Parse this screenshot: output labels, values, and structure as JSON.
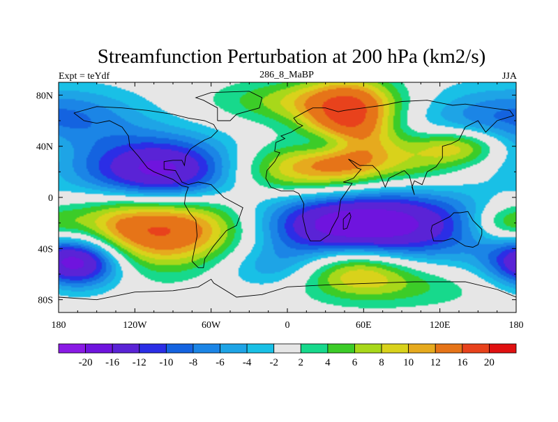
{
  "chart_data": {
    "type": "heatmap",
    "title": "Streamfunction Perturbation at 200 hPa (km2/s)",
    "left_string": "Expt = teYdf",
    "center_string": "286_8_MaBP",
    "right_string": "JJA",
    "x_ticks": [
      {
        "value": -180,
        "label": "180"
      },
      {
        "value": -120,
        "label": "120W"
      },
      {
        "value": -60,
        "label": "60W"
      },
      {
        "value": 0,
        "label": "0"
      },
      {
        "value": 60,
        "label": "60E"
      },
      {
        "value": 120,
        "label": "120E"
      },
      {
        "value": 180,
        "label": "180"
      }
    ],
    "y_ticks": [
      {
        "value": 80,
        "label": "80N"
      },
      {
        "value": 40,
        "label": "40N"
      },
      {
        "value": 0,
        "label": "0"
      },
      {
        "value": -40,
        "label": "40S"
      },
      {
        "value": -80,
        "label": "80S"
      }
    ],
    "xlim": [
      -180,
      180
    ],
    "ylim": [
      -90,
      90
    ],
    "colorbar_levels": [
      "-20",
      "-16",
      "-12",
      "-10",
      "-8",
      "-6",
      "-4",
      "-2",
      "2",
      "4",
      "6",
      "8",
      "10",
      "12",
      "16",
      "20"
    ],
    "colorbar_colors": [
      "#8a1ae5",
      "#6f14de",
      "#5a23d6",
      "#2b2ee6",
      "#1463e0",
      "#1b85e6",
      "#1ea4e6",
      "#19c0e6",
      "#e6e6e6",
      "#17d98c",
      "#3ccc28",
      "#a8d81a",
      "#d9d21b",
      "#e6aa1e",
      "#e67418",
      "#e8421c",
      "#e01010"
    ],
    "features": [
      {
        "lon": -100,
        "lat": 18,
        "value": -20,
        "rx": 45,
        "ry": 20
      },
      {
        "lon": 48,
        "lat": -22,
        "value": -22,
        "rx": 75,
        "ry": 22
      },
      {
        "lon": -165,
        "lat": -50,
        "value": -20,
        "rx": 25,
        "ry": 14
      },
      {
        "lon": 35,
        "lat": 42,
        "value": -8,
        "rx": 20,
        "ry": 8
      },
      {
        "lon": -5,
        "lat": -55,
        "value": -6,
        "rx": 35,
        "ry": 12
      },
      {
        "lon": 150,
        "lat": 60,
        "value": -6,
        "rx": 50,
        "ry": 20
      },
      {
        "lon": -160,
        "lat": 65,
        "value": -4,
        "rx": 40,
        "ry": 15
      },
      {
        "lon": -90,
        "lat": -22,
        "value": 22,
        "rx": 60,
        "ry": 22
      },
      {
        "lon": 10,
        "lat": 20,
        "value": 12,
        "rx": 40,
        "ry": 15
      },
      {
        "lon": 50,
        "lat": 55,
        "value": 16,
        "rx": 25,
        "ry": 25
      },
      {
        "lon": 20,
        "lat": 75,
        "value": 8,
        "rx": 50,
        "ry": 12
      },
      {
        "lon": 50,
        "lat": -55,
        "value": 14,
        "rx": 35,
        "ry": 14
      },
      {
        "lon": 135,
        "lat": 40,
        "value": 10,
        "rx": 25,
        "ry": 10
      },
      {
        "lon": 100,
        "lat": 25,
        "value": 6,
        "rx": 30,
        "ry": 15
      },
      {
        "lon": 170,
        "lat": -20,
        "value": 6,
        "rx": 18,
        "ry": 10
      },
      {
        "lon": 95,
        "lat": -70,
        "value": 4,
        "rx": 50,
        "ry": 12
      }
    ],
    "coastlines": [
      [
        [
          -168,
          66
        ],
        [
          -160,
          60
        ],
        [
          -150,
          58
        ],
        [
          -140,
          60
        ],
        [
          -130,
          55
        ],
        [
          -125,
          48
        ],
        [
          -124,
          40
        ],
        [
          -117,
          32
        ],
        [
          -110,
          23
        ],
        [
          -105,
          20
        ],
        [
          -95,
          16
        ],
        [
          -90,
          14
        ],
        [
          -83,
          9
        ],
        [
          -78,
          8
        ],
        [
          -80,
          2
        ],
        [
          -81,
          -5
        ],
        [
          -77,
          -12
        ],
        [
          -72,
          -18
        ],
        [
          -71,
          -30
        ],
        [
          -73,
          -40
        ],
        [
          -75,
          -50
        ],
        [
          -70,
          -55
        ],
        [
          -66,
          -55
        ],
        [
          -65,
          -48
        ],
        [
          -58,
          -38
        ],
        [
          -48,
          -26
        ],
        [
          -40,
          -22
        ],
        [
          -35,
          -8
        ],
        [
          -50,
          0
        ],
        [
          -60,
          10
        ],
        [
          -70,
          12
        ],
        [
          -78,
          10
        ],
        [
          -83,
          12
        ],
        [
          -88,
          21
        ],
        [
          -97,
          22
        ],
        [
          -97,
          28
        ],
        [
          -90,
          29
        ],
        [
          -83,
          29
        ],
        [
          -81,
          25
        ],
        [
          -80,
          32
        ],
        [
          -76,
          38
        ],
        [
          -70,
          42
        ],
        [
          -65,
          45
        ],
        [
          -60,
          47
        ],
        [
          -55,
          52
        ],
        [
          -58,
          57
        ],
        [
          -65,
          60
        ],
        [
          -78,
          62
        ],
        [
          -90,
          65
        ],
        [
          -110,
          68
        ],
        [
          -130,
          70
        ],
        [
          -150,
          71
        ],
        [
          -168,
          66
        ]
      ],
      [
        [
          -10,
          36
        ],
        [
          -9,
          43
        ],
        [
          -2,
          46
        ],
        [
          -5,
          48
        ],
        [
          3,
          51
        ],
        [
          8,
          54
        ],
        [
          12,
          56
        ],
        [
          8,
          58
        ],
        [
          5,
          62
        ],
        [
          14,
          67
        ],
        [
          20,
          70
        ],
        [
          30,
          70
        ],
        [
          40,
          67
        ],
        [
          45,
          68
        ],
        [
          60,
          70
        ],
        [
          75,
          72
        ],
        [
          90,
          75
        ],
        [
          110,
          76
        ],
        [
          130,
          72
        ],
        [
          140,
          73
        ],
        [
          160,
          70
        ],
        [
          175,
          68
        ],
        [
          178,
          64
        ],
        [
          165,
          60
        ],
        [
          160,
          55
        ],
        [
          156,
          51
        ],
        [
          150,
          60
        ],
        [
          140,
          55
        ],
        [
          135,
          45
        ],
        [
          129,
          42
        ],
        [
          122,
          40
        ],
        [
          122,
          31
        ],
        [
          117,
          24
        ],
        [
          110,
          20
        ],
        [
          106,
          10
        ],
        [
          100,
          13
        ],
        [
          98,
          8
        ],
        [
          100,
          2
        ],
        [
          96,
          17
        ],
        [
          92,
          21
        ],
        [
          80,
          15
        ],
        [
          77,
          8
        ],
        [
          72,
          20
        ],
        [
          67,
          25
        ],
        [
          57,
          25
        ],
        [
          52,
          28
        ],
        [
          48,
          30
        ],
        [
          55,
          23
        ],
        [
          58,
          22
        ],
        [
          52,
          15
        ],
        [
          44,
          12
        ],
        [
          51,
          11
        ],
        [
          42,
          -2
        ],
        [
          40,
          -15
        ],
        [
          35,
          -24
        ],
        [
          33,
          -29
        ],
        [
          26,
          -34
        ],
        [
          18,
          -34
        ],
        [
          15,
          -28
        ],
        [
          12,
          -15
        ],
        [
          13,
          -5
        ],
        [
          9,
          3
        ],
        [
          5,
          5
        ],
        [
          -5,
          5
        ],
        [
          -13,
          8
        ],
        [
          -17,
          15
        ],
        [
          -16,
          21
        ],
        [
          -10,
          28
        ],
        [
          -6,
          35
        ],
        [
          -10,
          36
        ]
      ],
      [
        [
          114,
          -22
        ],
        [
          113,
          -26
        ],
        [
          115,
          -34
        ],
        [
          123,
          -34
        ],
        [
          130,
          -32
        ],
        [
          135,
          -35
        ],
        [
          140,
          -38
        ],
        [
          146,
          -39
        ],
        [
          150,
          -37
        ],
        [
          153,
          -29
        ],
        [
          153,
          -25
        ],
        [
          149,
          -21
        ],
        [
          146,
          -18
        ],
        [
          142,
          -11
        ],
        [
          136,
          -12
        ],
        [
          131,
          -12
        ],
        [
          128,
          -15
        ],
        [
          122,
          -18
        ],
        [
          114,
          -22
        ]
      ],
      [
        [
          -180,
          -78
        ],
        [
          -150,
          -80
        ],
        [
          -120,
          -74
        ],
        [
          -90,
          -73
        ],
        [
          -70,
          -70
        ],
        [
          -60,
          -64
        ],
        [
          -58,
          -67
        ],
        [
          -40,
          -78
        ],
        [
          -20,
          -76
        ],
        [
          0,
          -70
        ],
        [
          40,
          -68
        ],
        [
          70,
          -67
        ],
        [
          100,
          -66
        ],
        [
          140,
          -66
        ],
        [
          165,
          -72
        ],
        [
          180,
          -78
        ]
      ],
      [
        [
          -55,
          60
        ],
        [
          -45,
          60
        ],
        [
          -40,
          65
        ],
        [
          -22,
          70
        ],
        [
          -20,
          78
        ],
        [
          -30,
          83
        ],
        [
          -60,
          82
        ],
        [
          -72,
          78
        ],
        [
          -66,
          76
        ],
        [
          -55,
          70
        ],
        [
          -55,
          60
        ]
      ],
      [
        [
          44,
          -25
        ],
        [
          47,
          -24
        ],
        [
          50,
          -15
        ],
        [
          49,
          -12
        ],
        [
          44,
          -17
        ],
        [
          44,
          -25
        ]
      ]
    ]
  }
}
